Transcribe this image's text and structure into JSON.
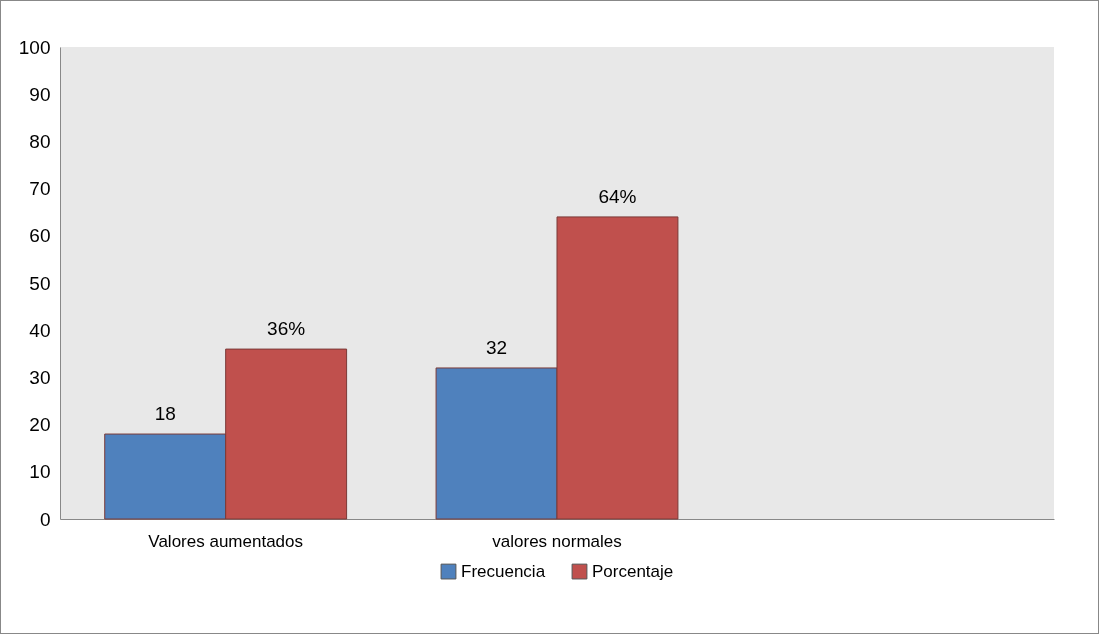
{
  "chart_data": {
    "type": "bar",
    "categories": [
      "Valores  aumentados",
      "valores normales",
      null
    ],
    "series": [
      {
        "name": "Frecuencia",
        "color": "#4f81bd",
        "values": [
          18,
          32,
          null
        ],
        "value_labels": [
          "18",
          "32",
          null
        ]
      },
      {
        "name": "Porcentaje",
        "color": "#c0504d",
        "values": [
          36,
          64,
          null
        ],
        "value_labels": [
          "36%",
          "64%",
          null
        ]
      }
    ],
    "ylim": [
      0,
      100
    ],
    "yticks": [
      0,
      10,
      20,
      30,
      40,
      50,
      60,
      70,
      80,
      90,
      100
    ],
    "grid": false,
    "legend": "bottom"
  }
}
